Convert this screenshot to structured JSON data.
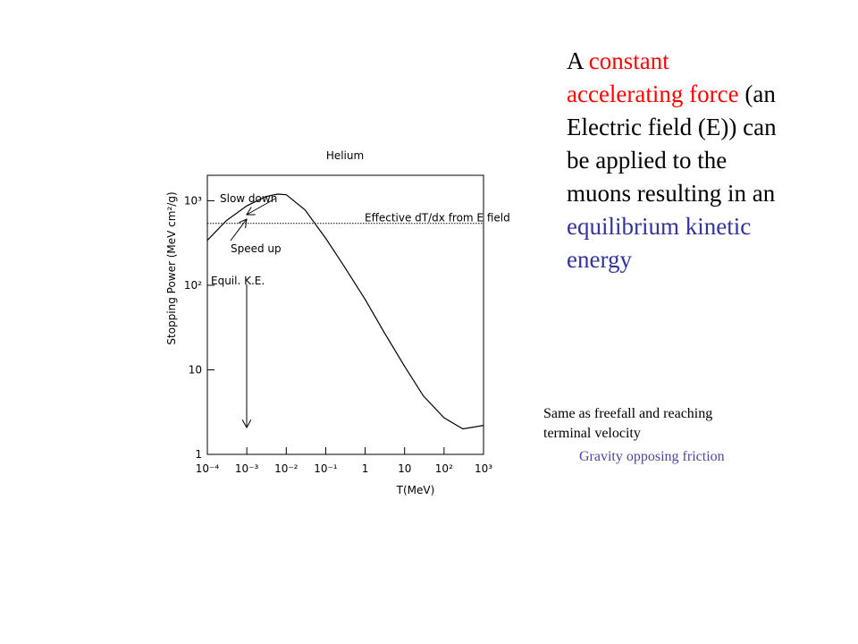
{
  "chart_data": {
    "type": "line",
    "title": "Helium",
    "xlabel": "T(MeV)",
    "ylabel": "Stopping Power (MeV cm²/g)",
    "xlog": true,
    "ylog": true,
    "xlim": [
      0.0001,
      1000
    ],
    "ylim": [
      1,
      2000
    ],
    "xticks": [
      {
        "value": 0.0001,
        "label": "10⁻⁴"
      },
      {
        "value": 0.001,
        "label": "10⁻³"
      },
      {
        "value": 0.01,
        "label": "10⁻²"
      },
      {
        "value": 0.1,
        "label": "10⁻¹"
      },
      1,
      10,
      {
        "value": 100,
        "label": "10²"
      },
      {
        "value": 1000,
        "label": "10³"
      }
    ],
    "yticks": [
      1,
      10,
      {
        "value": 100,
        "label": "10²"
      },
      {
        "value": 1000,
        "label": "10³"
      }
    ],
    "x": [
      0.0001,
      0.0003,
      0.001,
      0.003,
      0.006,
      0.01,
      0.03,
      0.1,
      0.3,
      1,
      3,
      10,
      30,
      100,
      300,
      1000
    ],
    "values": [
      340,
      580,
      870,
      1120,
      1200,
      1180,
      780,
      360,
      165,
      68,
      28,
      11,
      4.9,
      2.7,
      2.0,
      2.2
    ],
    "color": "#000000",
    "reference_line": {
      "value": 540,
      "label": "Effective dT/dx from E field"
    },
    "annotations": [
      "Slow down",
      "Speed up",
      "Equil. K.E."
    ]
  },
  "slide": {
    "text_lines": [
      [
        {
          "text": "A ",
          "color": "#000000"
        },
        {
          "text": "constant",
          "color": "#ff0000"
        }
      ],
      [
        {
          "text": "accelerating force",
          "color": "#ff0000"
        },
        {
          "text": " (an",
          "color": "#000000"
        }
      ],
      [
        {
          "text": "Electric field (E)) can",
          "color": "#000000"
        }
      ],
      [
        {
          "text": "be applied to the",
          "color": "#000000"
        }
      ],
      [
        {
          "text": "muons resulting in an",
          "color": "#000000"
        }
      ],
      [
        {
          "text": "equilibrium kinetic",
          "color": "#33339a"
        }
      ],
      [
        {
          "text": "energy",
          "color": "#33339a"
        }
      ]
    ],
    "note": [
      "Same as freefall and reaching",
      "terminal velocity"
    ],
    "subnote": "Gravity opposing friction"
  }
}
